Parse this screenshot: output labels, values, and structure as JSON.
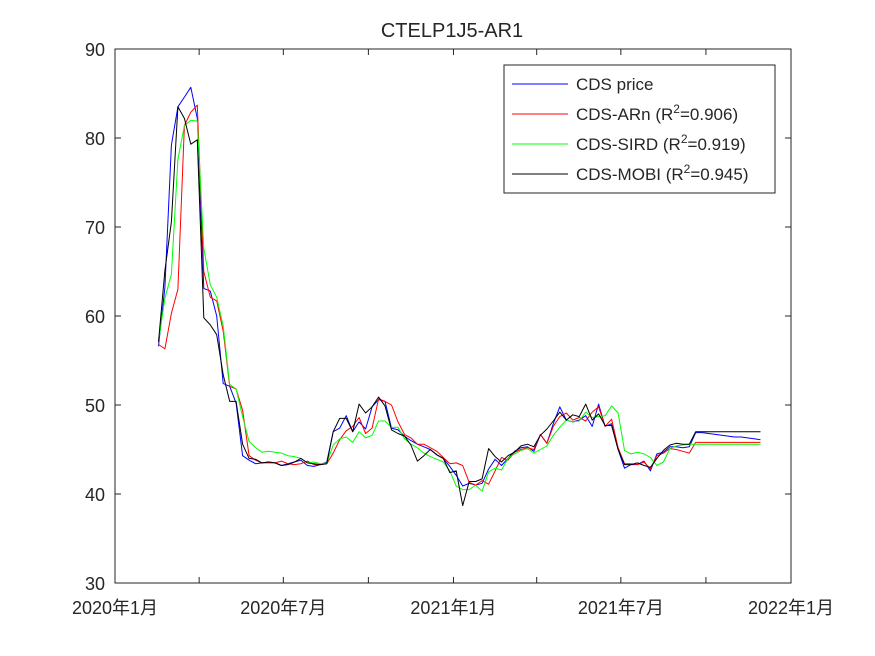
{
  "chart_data": {
    "type": "line",
    "title": "CTELP1J5-AR1",
    "xlabel": "",
    "ylabel": "",
    "ylim": [
      30,
      90
    ],
    "xlim": [
      "2020-01-01",
      "2022-01-01"
    ],
    "yticks": [
      30,
      40,
      50,
      60,
      70,
      80,
      90
    ],
    "ytick_labels": [
      "30",
      "40",
      "50",
      "60",
      "70",
      "80",
      "90"
    ],
    "xticks": [
      "2020-01-01",
      "2020-04-01",
      "2020-07-01",
      "2020-10-01",
      "2021-01-01",
      "2021-04-01",
      "2021-07-01",
      "2021-10-01",
      "2022-01-01"
    ],
    "xtick_labels": [
      "2020年1月",
      "",
      "2020年7月",
      "",
      "2021年1月",
      "",
      "2021年7月",
      "",
      "2022年1月"
    ],
    "grid": false,
    "legend_position": "top-right",
    "x": [
      "2020-02-17",
      "2020-02-24",
      "2020-03-02",
      "2020-03-09",
      "2020-03-16",
      "2020-03-23",
      "2020-03-30",
      "2020-04-06",
      "2020-04-13",
      "2020-04-20",
      "2020-04-27",
      "2020-05-04",
      "2020-05-11",
      "2020-05-18",
      "2020-05-25",
      "2020-06-01",
      "2020-06-08",
      "2020-06-15",
      "2020-06-22",
      "2020-06-29",
      "2020-07-06",
      "2020-07-13",
      "2020-07-20",
      "2020-07-27",
      "2020-08-03",
      "2020-08-10",
      "2020-08-17",
      "2020-08-24",
      "2020-08-31",
      "2020-09-07",
      "2020-09-14",
      "2020-09-21",
      "2020-09-28",
      "2020-10-05",
      "2020-10-12",
      "2020-10-19",
      "2020-10-26",
      "2020-11-02",
      "2020-11-09",
      "2020-11-16",
      "2020-11-23",
      "2020-11-30",
      "2020-12-07",
      "2020-12-14",
      "2020-12-21",
      "2020-12-28",
      "2021-01-04",
      "2021-01-11",
      "2021-01-18",
      "2021-01-25",
      "2021-02-01",
      "2021-02-08",
      "2021-02-15",
      "2021-02-22",
      "2021-03-01",
      "2021-03-08",
      "2021-03-15",
      "2021-03-22",
      "2021-03-29",
      "2021-04-05",
      "2021-04-12",
      "2021-04-19",
      "2021-04-26",
      "2021-05-03",
      "2021-05-10",
      "2021-05-17",
      "2021-05-24",
      "2021-05-31",
      "2021-06-07",
      "2021-06-14",
      "2021-06-21",
      "2021-06-28",
      "2021-07-05",
      "2021-07-12",
      "2021-07-19",
      "2021-07-26",
      "2021-08-02",
      "2021-08-09",
      "2021-08-16",
      "2021-08-23",
      "2021-08-30",
      "2021-09-06",
      "2021-09-13",
      "2021-09-20",
      "2021-09-27",
      "2021-10-04",
      "2021-10-11",
      "2021-10-18",
      "2021-10-25",
      "2021-11-01",
      "2021-11-08",
      "2021-11-15",
      "2021-11-22",
      "2021-11-29"
    ],
    "series": [
      {
        "name": "CDS price",
        "color": "#0000ff",
        "values": [
          56.6,
          63.2,
          79.2,
          83.5,
          84.6,
          85.7,
          82.2,
          63.1,
          62.8,
          60.0,
          52.4,
          52.1,
          50.2,
          44.3,
          43.8,
          43.4,
          43.5,
          43.6,
          43.5,
          43.2,
          43.4,
          43.6,
          43.8,
          43.2,
          43.1,
          43.3,
          43.6,
          47.0,
          47.4,
          48.8,
          47.0,
          48.1,
          47.3,
          49.8,
          50.6,
          50.4,
          47.4,
          47.2,
          46.5,
          46.0,
          45.6,
          45.3,
          45.0,
          44.4,
          44.0,
          43.1,
          42.1,
          40.9,
          41.2,
          41.0,
          41.2,
          42.8,
          43.9,
          43.2,
          44.0,
          44.8,
          45.2,
          45.3,
          44.8,
          46.7,
          45.7,
          47.9,
          49.8,
          48.3,
          48.1,
          48.3,
          48.8,
          47.6,
          50.1,
          47.6,
          47.9,
          45.0,
          42.9,
          43.3,
          43.3,
          43.7,
          42.6,
          44.5,
          44.7,
          45.3,
          45.3,
          45.2,
          45.3,
          46.9,
          46.9,
          46.8,
          46.7,
          46.6,
          46.5,
          46.4,
          46.4,
          46.3,
          46.2,
          46.1
        ],
        "values_note": ""
      },
      {
        "name": "CDS-ARn",
        "r2": "0.906",
        "color": "#ff0000",
        "values": [
          56.8,
          56.3,
          60.3,
          63.0,
          81.4,
          82.9,
          83.7,
          65.0,
          62.1,
          61.7,
          58.3,
          52.1,
          51.8,
          49.4,
          44.3,
          43.8,
          43.5,
          43.5,
          43.5,
          43.7,
          43.4,
          43.3,
          43.4,
          43.7,
          43.3,
          43.3,
          43.4,
          44.6,
          46.1,
          47.1,
          47.6,
          48.6,
          46.8,
          47.4,
          50.7,
          50.4,
          50.0,
          48.1,
          46.7,
          46.3,
          45.6,
          45.6,
          45.2,
          44.8,
          44.1,
          43.4,
          43.5,
          43.2,
          41.3,
          41.0,
          41.5,
          41.1,
          42.6,
          44.1,
          43.8,
          44.7,
          45.0,
          45.2,
          45.0,
          46.7,
          45.7,
          47.6,
          48.7,
          49.1,
          48.3,
          48.6,
          48.2,
          49.2,
          49.8,
          47.6,
          48.4,
          45.2,
          43.4,
          43.4,
          43.3,
          43.6,
          42.8,
          44.3,
          44.6,
          45.1,
          45.0,
          44.8,
          44.6,
          45.8,
          45.8,
          45.8,
          45.8,
          45.8,
          45.8,
          45.8,
          45.8,
          45.8,
          45.8,
          45.8
        ]
      },
      {
        "name": "CDS-SIRD",
        "r2": "0.919",
        "color": "#00ff00",
        "values": [
          57.1,
          62.0,
          64.7,
          77.6,
          81.4,
          82.0,
          81.9,
          67.6,
          63.5,
          62.1,
          58.9,
          52.3,
          51.8,
          48.7,
          45.9,
          45.2,
          44.7,
          44.8,
          44.7,
          44.6,
          44.3,
          44.2,
          44.0,
          43.5,
          43.6,
          43.4,
          43.5,
          45.5,
          46.2,
          46.4,
          45.8,
          47.0,
          46.3,
          46.6,
          48.2,
          48.2,
          47.5,
          47.5,
          46.2,
          45.6,
          45.2,
          44.6,
          44.2,
          43.9,
          43.6,
          42.6,
          40.9,
          40.5,
          40.5,
          41.0,
          40.3,
          42.5,
          42.9,
          42.7,
          44.0,
          44.5,
          44.9,
          45.1,
          44.6,
          45.0,
          45.4,
          46.6,
          47.5,
          48.3,
          48.1,
          48.2,
          49.2,
          48.6,
          48.7,
          48.8,
          49.9,
          49.1,
          44.9,
          44.5,
          44.7,
          44.5,
          44.1,
          43.2,
          43.6,
          45.1,
          45.4,
          45.5,
          45.6,
          45.6,
          45.6,
          45.6,
          45.6,
          45.6,
          45.6,
          45.6,
          45.6,
          45.6,
          45.6,
          45.6
        ]
      },
      {
        "name": "CDS-MOBI",
        "r2": "0.945",
        "color": "#000000",
        "values": [
          57.1,
          65.1,
          70.6,
          83.5,
          82.2,
          79.3,
          79.8,
          59.8,
          59.0,
          57.9,
          53.4,
          50.4,
          50.4,
          45.6,
          44.0,
          43.9,
          43.5,
          43.6,
          43.5,
          43.2,
          43.3,
          43.6,
          44.0,
          43.5,
          43.4,
          43.3,
          43.4,
          47.0,
          48.5,
          48.5,
          47.0,
          50.1,
          49.1,
          49.8,
          50.9,
          49.9,
          47.2,
          46.8,
          46.5,
          45.5,
          43.7,
          44.3,
          45.0,
          44.4,
          44.0,
          42.4,
          42.6,
          38.7,
          41.4,
          41.4,
          41.7,
          45.1,
          44.2,
          43.6,
          44.3,
          44.7,
          45.4,
          45.6,
          45.3,
          46.6,
          47.3,
          48.2,
          49.2,
          48.3,
          48.9,
          48.7,
          50.1,
          48.3,
          49.0,
          47.7,
          47.7,
          45.0,
          43.3,
          43.3,
          43.5,
          43.2,
          43.0,
          44.0,
          44.9,
          45.5,
          45.7,
          45.6,
          45.6,
          47.0,
          47.0,
          47.0,
          47.0,
          47.0,
          47.0,
          47.0,
          47.0,
          47.0,
          47.0,
          47.0
        ]
      }
    ]
  }
}
